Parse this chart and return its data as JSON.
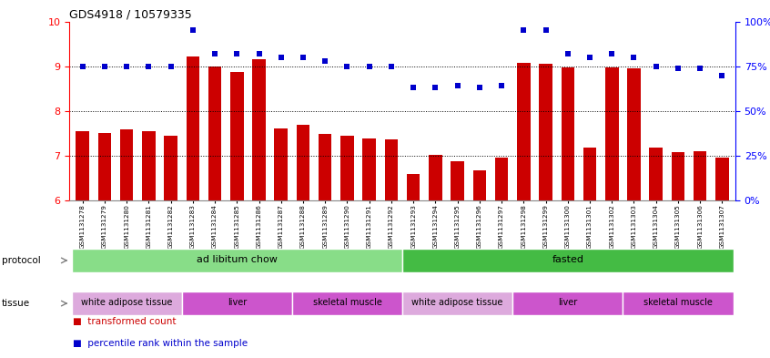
{
  "title": "GDS4918 / 10579335",
  "samples": [
    "GSM1131278",
    "GSM1131279",
    "GSM1131280",
    "GSM1131281",
    "GSM1131282",
    "GSM1131283",
    "GSM1131284",
    "GSM1131285",
    "GSM1131286",
    "GSM1131287",
    "GSM1131288",
    "GSM1131289",
    "GSM1131290",
    "GSM1131291",
    "GSM1131292",
    "GSM1131293",
    "GSM1131294",
    "GSM1131295",
    "GSM1131296",
    "GSM1131297",
    "GSM1131298",
    "GSM1131299",
    "GSM1131300",
    "GSM1131301",
    "GSM1131302",
    "GSM1131303",
    "GSM1131304",
    "GSM1131305",
    "GSM1131306",
    "GSM1131307"
  ],
  "bar_values": [
    7.55,
    7.5,
    7.58,
    7.55,
    7.45,
    9.22,
    9.0,
    8.88,
    9.15,
    7.6,
    7.7,
    7.48,
    7.44,
    7.38,
    7.36,
    6.6,
    7.02,
    6.88,
    6.68,
    6.95,
    9.08,
    9.05,
    8.98,
    7.18,
    8.98,
    8.95,
    7.18,
    7.08,
    7.1,
    6.95
  ],
  "dot_values": [
    75,
    75,
    75,
    75,
    75,
    95,
    82,
    82,
    82,
    80,
    80,
    78,
    75,
    75,
    75,
    63,
    63,
    64,
    63,
    64,
    95,
    95,
    82,
    80,
    82,
    80,
    75,
    74,
    74,
    70
  ],
  "ylim_left": [
    6,
    10
  ],
  "ylim_right": [
    0,
    100
  ],
  "yticks_left": [
    6,
    7,
    8,
    9,
    10
  ],
  "yticks_right": [
    0,
    25,
    50,
    75,
    100
  ],
  "ytick_labels_right": [
    "0%",
    "25%",
    "50%",
    "75%",
    "100%"
  ],
  "bar_color": "#cc0000",
  "dot_color": "#0000cc",
  "bar_width": 0.6,
  "protocol_groups": [
    {
      "label": "ad libitum chow",
      "start": 0,
      "end": 14,
      "color": "#88dd88"
    },
    {
      "label": "fasted",
      "start": 15,
      "end": 29,
      "color": "#44bb44"
    }
  ],
  "tissue_groups": [
    {
      "label": "white adipose tissue",
      "start": 0,
      "end": 4,
      "color": "#ddaadd"
    },
    {
      "label": "liver",
      "start": 5,
      "end": 9,
      "color": "#cc55cc"
    },
    {
      "label": "skeletal muscle",
      "start": 10,
      "end": 14,
      "color": "#cc55cc"
    },
    {
      "label": "white adipose tissue",
      "start": 15,
      "end": 19,
      "color": "#ddaadd"
    },
    {
      "label": "liver",
      "start": 20,
      "end": 24,
      "color": "#cc55cc"
    },
    {
      "label": "skeletal muscle",
      "start": 25,
      "end": 29,
      "color": "#cc55cc"
    }
  ]
}
